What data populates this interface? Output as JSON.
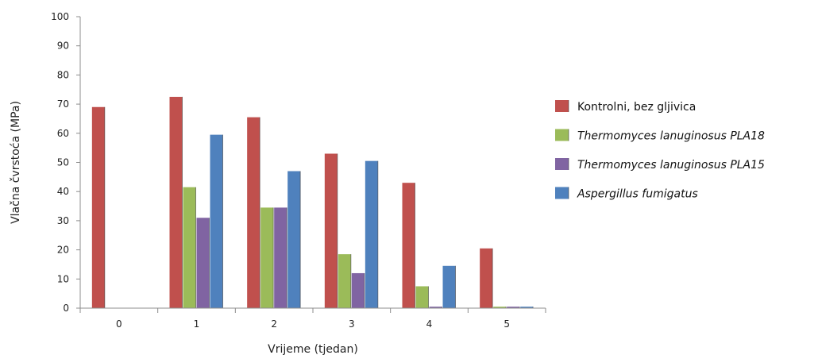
{
  "chart_data": {
    "type": "bar",
    "title": "",
    "xlabel": "Vrijeme (tjedan)",
    "ylabel": "Vlačna čvrstoća (MPa)",
    "ylim": [
      0,
      100
    ],
    "yticks": [
      0,
      10,
      20,
      30,
      40,
      50,
      60,
      70,
      80,
      90,
      100
    ],
    "categories": [
      "0",
      "1",
      "2",
      "3",
      "4",
      "5"
    ],
    "grid": false,
    "legend_position": "right",
    "series": [
      {
        "name": "Kontrolni, bez gljivica",
        "italic": false,
        "color": "#C0504D",
        "values": [
          69,
          72.5,
          65.5,
          53,
          43,
          20.5
        ]
      },
      {
        "name": "Thermomyces lanuginosus PLA18",
        "italic": true,
        "color": "#9BBB59",
        "values": [
          null,
          41.5,
          34.5,
          18.5,
          7.5,
          0.5
        ]
      },
      {
        "name": "Thermomyces lanuginosus PLA15",
        "italic": true,
        "color": "#8064A2",
        "values": [
          null,
          31,
          34.5,
          12,
          0.5,
          0.5
        ]
      },
      {
        "name": "Aspergillus fumigatus",
        "italic": true,
        "color": "#4F81BD",
        "values": [
          null,
          59.5,
          47,
          50.5,
          14.5,
          0.5
        ]
      }
    ]
  }
}
